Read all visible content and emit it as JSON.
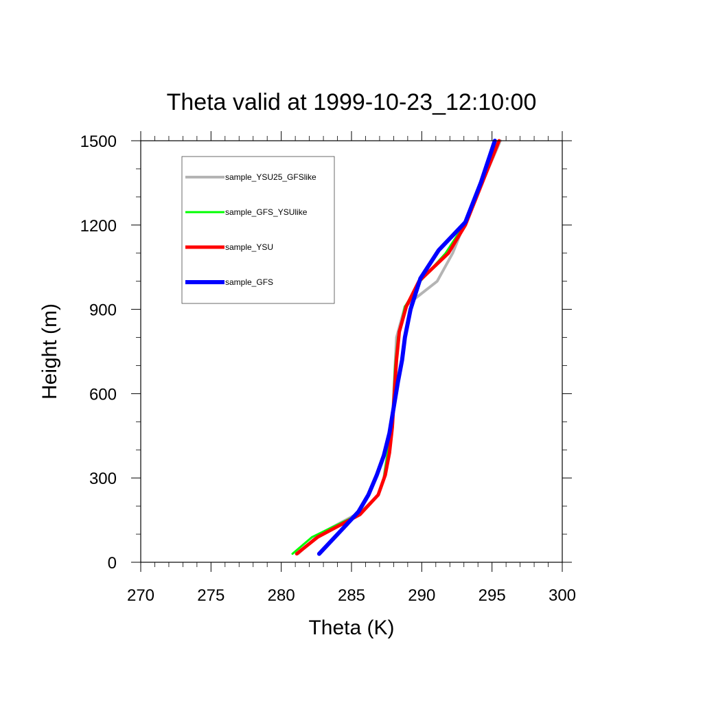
{
  "chart_data": {
    "type": "line",
    "title": "Theta valid at 1999-10-23_12:10:00",
    "xlabel": "Theta (K)",
    "ylabel": "Height (m)",
    "xlim": [
      270,
      300
    ],
    "ylim": [
      0,
      1500
    ],
    "x_ticks": [
      "270",
      "275",
      "280",
      "285",
      "290",
      "295",
      "300"
    ],
    "y_ticks": [
      "0",
      "300",
      "600",
      "900",
      "1200",
      "1500"
    ],
    "legend_position": "top-left",
    "series": [
      {
        "name": "sample_YSU25_GFSlike",
        "color": "#b4b4b4",
        "points": [
          [
            281.2,
            30
          ],
          [
            282.7,
            100
          ],
          [
            285.7,
            180
          ],
          [
            286.9,
            240
          ],
          [
            287.3,
            300
          ],
          [
            287.6,
            400
          ],
          [
            287.9,
            500
          ],
          [
            288.0,
            600
          ],
          [
            288.1,
            700
          ],
          [
            288.2,
            800
          ],
          [
            288.8,
            910
          ],
          [
            291.1,
            1000
          ],
          [
            292.2,
            1100
          ],
          [
            293.0,
            1200
          ],
          [
            294.3,
            1350
          ],
          [
            295.6,
            1500
          ]
        ]
      },
      {
        "name": "sample_GFS_YSUlike",
        "color": "#00ff00",
        "points": [
          [
            280.8,
            30
          ],
          [
            282.2,
            90
          ],
          [
            285.5,
            170
          ],
          [
            286.9,
            240
          ],
          [
            287.3,
            300
          ],
          [
            287.6,
            400
          ],
          [
            287.9,
            500
          ],
          [
            288.0,
            600
          ],
          [
            288.1,
            700
          ],
          [
            288.3,
            800
          ],
          [
            288.8,
            910
          ],
          [
            289.9,
            1000
          ],
          [
            291.7,
            1100
          ],
          [
            293.0,
            1200
          ],
          [
            294.3,
            1350
          ],
          [
            295.5,
            1500
          ]
        ]
      },
      {
        "name": "sample_YSU",
        "color": "#ff0000",
        "points": [
          [
            281.1,
            30
          ],
          [
            282.6,
            90
          ],
          [
            285.6,
            170
          ],
          [
            286.9,
            240
          ],
          [
            287.4,
            310
          ],
          [
            287.7,
            390
          ],
          [
            287.9,
            480
          ],
          [
            288.0,
            560
          ],
          [
            288.1,
            640
          ],
          [
            288.2,
            720
          ],
          [
            288.4,
            820
          ],
          [
            288.9,
            910
          ],
          [
            289.8,
            1000
          ],
          [
            291.9,
            1100
          ],
          [
            293.1,
            1200
          ],
          [
            294.3,
            1350
          ],
          [
            295.5,
            1500
          ]
        ]
      },
      {
        "name": "sample_GFS",
        "color": "#0000ff",
        "points": [
          [
            282.7,
            30
          ],
          [
            284.2,
            110
          ],
          [
            285.5,
            180
          ],
          [
            286.2,
            240
          ],
          [
            286.8,
            310
          ],
          [
            287.3,
            380
          ],
          [
            287.7,
            460
          ],
          [
            288.0,
            550
          ],
          [
            288.3,
            640
          ],
          [
            288.6,
            720
          ],
          [
            288.8,
            800
          ],
          [
            289.2,
            900
          ],
          [
            289.9,
            1010
          ],
          [
            291.2,
            1110
          ],
          [
            293.1,
            1210
          ],
          [
            294.2,
            1350
          ],
          [
            295.2,
            1500
          ]
        ]
      }
    ]
  }
}
